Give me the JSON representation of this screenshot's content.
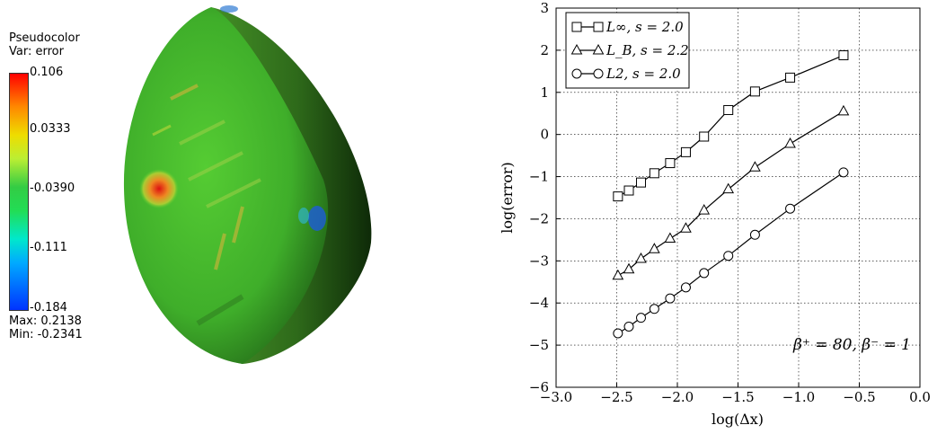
{
  "pseudocolor": {
    "title": "Pseudocolor",
    "var_label": "Var: error",
    "ticks": [
      "0.106",
      "0.0333",
      "-0.0390",
      "-0.111",
      "-0.184"
    ],
    "max_label": "Max:  0.2138",
    "min_label": "Min: -0.2341"
  },
  "chart_data": {
    "type": "line",
    "xlabel": "log(Δx)",
    "ylabel": "log(error)",
    "xlim": [
      -3.0,
      0.0
    ],
    "ylim": [
      -6,
      3
    ],
    "xticks": [
      "−3.0",
      "−2.5",
      "−2.0",
      "−1.5",
      "−1.0",
      "−0.5",
      "0.0"
    ],
    "yticks": [
      "3",
      "2",
      "1",
      "0",
      "−1",
      "−2",
      "−3",
      "−4",
      "−5",
      "−6"
    ],
    "grid": true,
    "legend_position": "top-left",
    "annotation": "β⁺ = 80, β⁻ = 1",
    "series": [
      {
        "name": "L∞, s = 2.0",
        "marker": "square",
        "x": [
          -2.49,
          -2.4,
          -2.3,
          -2.19,
          -2.06,
          -1.93,
          -1.78,
          -1.58,
          -1.36,
          -1.07,
          -0.63
        ],
        "y": [
          -1.47,
          -1.33,
          -1.14,
          -0.92,
          -0.68,
          -0.42,
          -0.05,
          0.58,
          1.02,
          1.35,
          1.88
        ]
      },
      {
        "name": "L_B, s = 2.2",
        "marker": "triangle",
        "x": [
          -2.49,
          -2.4,
          -2.3,
          -2.19,
          -2.06,
          -1.93,
          -1.78,
          -1.58,
          -1.36,
          -1.07,
          -0.63
        ],
        "y": [
          -3.35,
          -3.2,
          -2.95,
          -2.72,
          -2.47,
          -2.23,
          -1.8,
          -1.3,
          -0.78,
          -0.22,
          0.55
        ]
      },
      {
        "name": "L2, s = 2.0",
        "marker": "circle",
        "x": [
          -2.49,
          -2.4,
          -2.3,
          -2.19,
          -2.06,
          -1.93,
          -1.78,
          -1.58,
          -1.36,
          -1.07,
          -0.63
        ],
        "y": [
          -4.72,
          -4.56,
          -4.35,
          -4.14,
          -3.89,
          -3.63,
          -3.29,
          -2.88,
          -2.38,
          -1.76,
          -0.9
        ]
      }
    ]
  }
}
